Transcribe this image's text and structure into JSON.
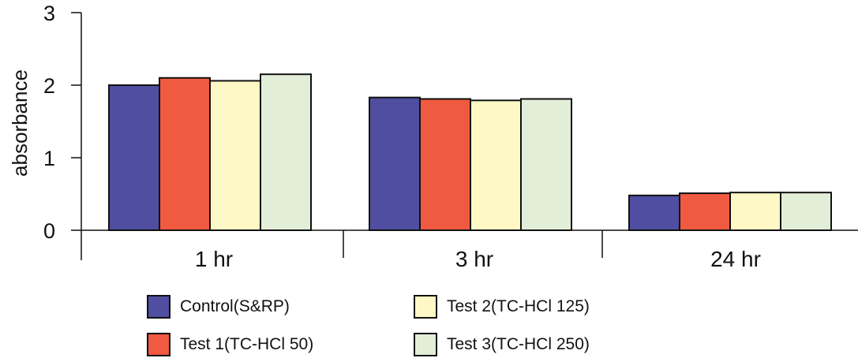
{
  "chart_data": {
    "type": "bar",
    "title": "",
    "xlabel": "",
    "ylabel": "absorbance",
    "ylim": [
      0,
      3
    ],
    "yticks": [
      "0",
      "1",
      "2",
      "3"
    ],
    "grid": false,
    "legend_position": "bottom",
    "categories": [
      "1 hr",
      "3 hr",
      "24 hr"
    ],
    "series": [
      {
        "name": "Control(S&RP)",
        "color": "#4f4ea0",
        "values": [
          2.0,
          1.83,
          0.48
        ]
      },
      {
        "name": "Test 1(TC-HCl 50)",
        "color": "#f05a40",
        "values": [
          2.1,
          1.81,
          0.51
        ]
      },
      {
        "name": "Test 2(TC-HCl 125)",
        "color": "#fdf8c5",
        "values": [
          2.06,
          1.79,
          0.52
        ]
      },
      {
        "name": "Test 3(TC-HCl 250)",
        "color": "#e3eed8",
        "values": [
          2.15,
          1.81,
          0.52
        ]
      }
    ]
  }
}
